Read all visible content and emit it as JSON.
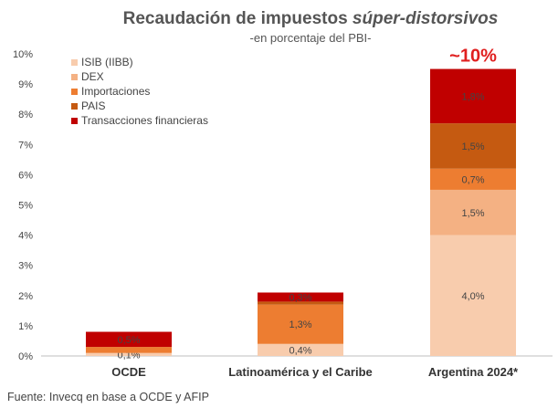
{
  "chart_data": {
    "type": "bar",
    "stacked": true,
    "title": "Recaudación de impuestos ",
    "title_italic": "súper-distorsivos",
    "subtitle": "-en porcentaje del PBI-",
    "categories": [
      "OCDE",
      "Latinoamérica y el Caribe",
      "Argentina 2024*"
    ],
    "ylim": [
      0,
      10
    ],
    "yticks": [
      "0%",
      "1%",
      "2%",
      "3%",
      "4%",
      "5%",
      "6%",
      "7%",
      "8%",
      "9%",
      "10%"
    ],
    "series": [
      {
        "name": "ISIB (IIBB)",
        "color": "#f8ccad",
        "values": [
          0.1,
          0.4,
          4.0
        ],
        "labels": [
          "0,1%",
          "0,4%",
          "4,0%"
        ]
      },
      {
        "name": "DEX",
        "color": "#f4b183",
        "values": [
          0.0,
          0.0,
          1.5
        ],
        "labels": [
          "",
          "",
          "1,5%"
        ]
      },
      {
        "name": "Importaciones",
        "color": "#ed7d31",
        "values": [
          0.2,
          1.3,
          0.7
        ],
        "labels": [
          "",
          "1,3%",
          "0,7%"
        ]
      },
      {
        "name": "PAIS",
        "color": "#c55a11",
        "values": [
          0.0,
          0.1,
          1.5
        ],
        "labels": [
          "",
          "",
          "1,5%"
        ]
      },
      {
        "name": "Transacciones financieras",
        "color": "#c00000",
        "values": [
          0.5,
          0.3,
          1.8
        ],
        "labels": [
          "0,5%",
          "0,3%",
          "1,8%"
        ]
      }
    ],
    "callout": {
      "category": "Argentina 2024*",
      "text": "~10%"
    },
    "legend_position": "top-left",
    "grid": false
  },
  "source": "Fuente: Invecq en base a OCDE y AFIP"
}
